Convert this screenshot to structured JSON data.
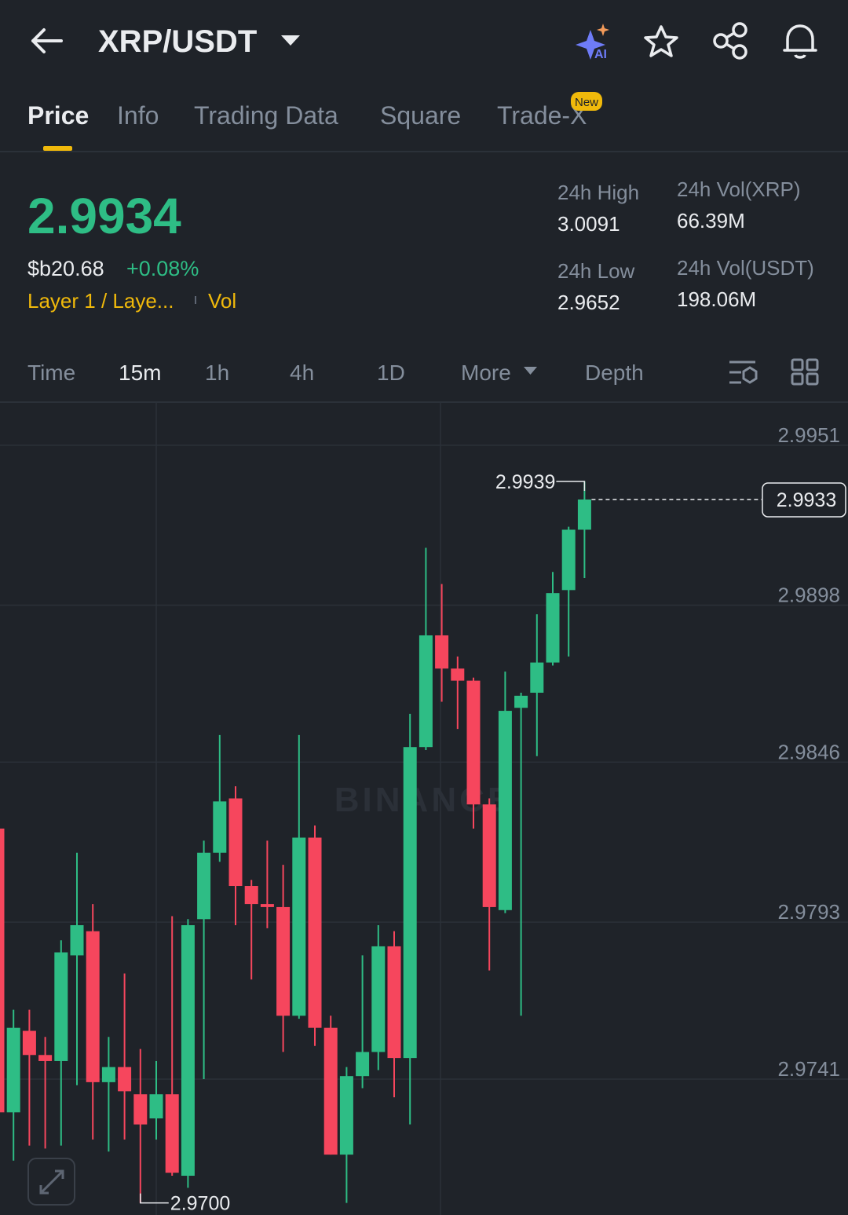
{
  "header": {
    "pair": "XRP/USDT"
  },
  "tabs": [
    "Price",
    "Info",
    "Trading Data",
    "Square",
    "Trade-X"
  ],
  "tab_badge": "New",
  "ticker": {
    "price": "2.9934",
    "fiat": "$b20.68",
    "change": "+0.08%",
    "sector": "Layer 1 / Laye...",
    "vol": "Vol",
    "stats": [
      {
        "label": "24h High",
        "value": "3.0091"
      },
      {
        "label": "24h Low",
        "value": "2.9652"
      },
      {
        "label": "24h Vol(XRP)",
        "value": "66.39M"
      },
      {
        "label": "24h Vol(USDT)",
        "value": "198.06M"
      }
    ]
  },
  "intervals": [
    "Time",
    "15m",
    "1h",
    "4h",
    "1D",
    "More",
    "Depth"
  ],
  "chart_data": {
    "type": "candlestick",
    "watermark": "BINANCE",
    "open": [
      2.9824,
      2.973,
      2.9757,
      2.9749,
      2.9747,
      2.9782,
      2.979,
      2.974,
      2.9745,
      2.9736,
      2.9728,
      2.9736,
      2.9709,
      2.9794,
      2.9816,
      2.9834,
      2.9805,
      2.9799,
      2.9798,
      2.9762,
      2.9821,
      2.9758,
      2.9716,
      2.9742,
      2.975,
      2.9785,
      2.9748,
      2.9851,
      2.9888,
      2.9877,
      2.9873,
      2.9832,
      2.9797,
      2.9864,
      2.9869,
      2.9879,
      2.9903,
      2.9923
    ],
    "high": [
      2.9824,
      2.9764,
      2.9764,
      2.9755,
      2.9787,
      2.9816,
      2.9799,
      2.9755,
      2.9776,
      2.9751,
      2.9747,
      2.9795,
      2.9794,
      2.982,
      2.9855,
      2.9838,
      2.9807,
      2.982,
      2.9812,
      2.9855,
      2.9825,
      2.9762,
      2.9745,
      2.9782,
      2.9792,
      2.979,
      2.9862,
      2.9917,
      2.9905,
      2.9881,
      2.9874,
      2.9834,
      2.9876,
      2.9869,
      2.9895,
      2.9909,
      2.9924,
      2.9939
    ],
    "low": [
      2.9723,
      2.9714,
      2.9719,
      2.9718,
      2.9719,
      2.9739,
      2.9721,
      2.9717,
      2.9721,
      2.97,
      2.9721,
      2.9709,
      2.9705,
      2.9741,
      2.9813,
      2.9792,
      2.9774,
      2.9791,
      2.975,
      2.9761,
      2.9752,
      2.9716,
      2.97,
      2.9738,
      2.9744,
      2.9735,
      2.9726,
      2.985,
      2.9866,
      2.9857,
      2.9824,
      2.9777,
      2.9796,
      2.9762,
      2.9848,
      2.9878,
      2.9881,
      2.9907
    ],
    "close": [
      2.973,
      2.9758,
      2.9749,
      2.9747,
      2.9783,
      2.9792,
      2.974,
      2.9745,
      2.9737,
      2.9726,
      2.9736,
      2.971,
      2.9792,
      2.9816,
      2.9833,
      2.9805,
      2.9799,
      2.9798,
      2.9762,
      2.9821,
      2.9758,
      2.9716,
      2.9742,
      2.975,
      2.9785,
      2.9748,
      2.9851,
      2.9888,
      2.9877,
      2.9873,
      2.9832,
      2.9798,
      2.9863,
      2.9868,
      2.9879,
      2.9902,
      2.9923,
      2.9933
    ],
    "up_color": "#2ebd85",
    "down_color": "#f6465d",
    "ylim": [
      2.9696,
      2.9965
    ],
    "yticks": [
      2.9951,
      2.9898,
      2.9846,
      2.9793,
      2.9741
    ],
    "grid": true,
    "last_price": 2.9933,
    "high_label": 2.9939,
    "low_label": {
      "value": 2.97,
      "label": "2.9700"
    }
  }
}
